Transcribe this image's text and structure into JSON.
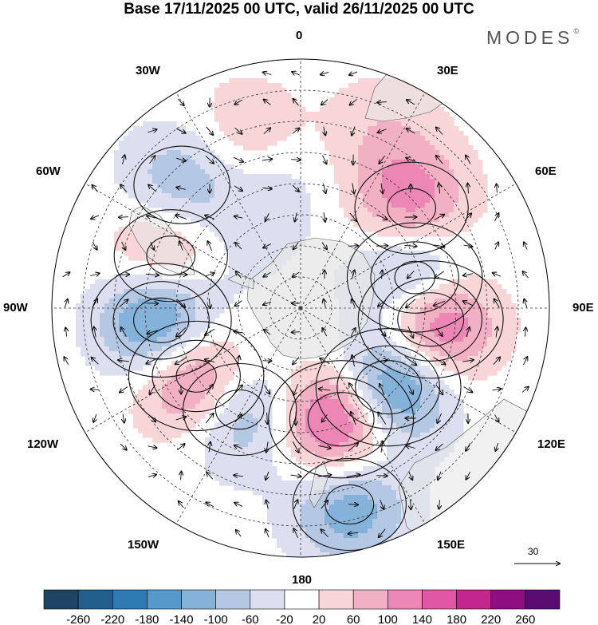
{
  "title": "Base 17/11/2025 00 UTC, valid 26/11/2025 00 UTC",
  "brand": "MODES",
  "brand_mark": "©",
  "longitude_labels": {
    "lon_0": "0",
    "lon_30e": "30E",
    "lon_60e": "60E",
    "lon_90e": "90E",
    "lon_120e": "120E",
    "lon_150e": "150E",
    "lon_180": "180",
    "lon_150w": "150W",
    "lon_120w": "120W",
    "lon_90w": "90W",
    "lon_60w": "60W",
    "lon_30w": "30W"
  },
  "reference_vector": {
    "label": "30"
  },
  "colorbar": {
    "tick_labels": [
      "-260",
      "-220",
      "-180",
      "-140",
      "-100",
      "-60",
      "-20",
      "20",
      "60",
      "100",
      "140",
      "180",
      "220",
      "260"
    ],
    "colors": [
      "#1c4463",
      "#235f8d",
      "#2e7bb3",
      "#5598c9",
      "#85b2d8",
      "#b4c8e4",
      "#dcdff0",
      "#ffffff",
      "#f8d6d8",
      "#f2b0c4",
      "#ec86b4",
      "#df57a5",
      "#c42690",
      "#8f0f82",
      "#5a0c72"
    ]
  },
  "anomaly_centers": [
    {
      "lon": 48,
      "lat": -42,
      "value": 140
    },
    {
      "lon": 75,
      "lat": -52,
      "value": -200
    },
    {
      "lon": 95,
      "lat": -48,
      "value": 240
    },
    {
      "lon": 132,
      "lat": -52,
      "value": -240
    },
    {
      "lon": 160,
      "lat": -52,
      "value": 240
    },
    {
      "lon": 166,
      "lat": -25,
      "value": -140
    },
    {
      "lon": -149,
      "lat": -52,
      "value": -140
    },
    {
      "lon": -123,
      "lat": -50,
      "value": 200
    },
    {
      "lon": -95,
      "lat": -45,
      "value": -220
    },
    {
      "lon": -68,
      "lat": -45,
      "value": 140
    },
    {
      "lon": -44,
      "lat": -35,
      "value": -110
    },
    {
      "lon": -18,
      "lat": -33,
      "value": 70
    },
    {
      "lon": -12,
      "lat": -50,
      "value": -50
    },
    {
      "lon": 25,
      "lat": -28,
      "value": 50
    },
    {
      "lon": -55,
      "lat": -60,
      "value": -40
    }
  ]
}
